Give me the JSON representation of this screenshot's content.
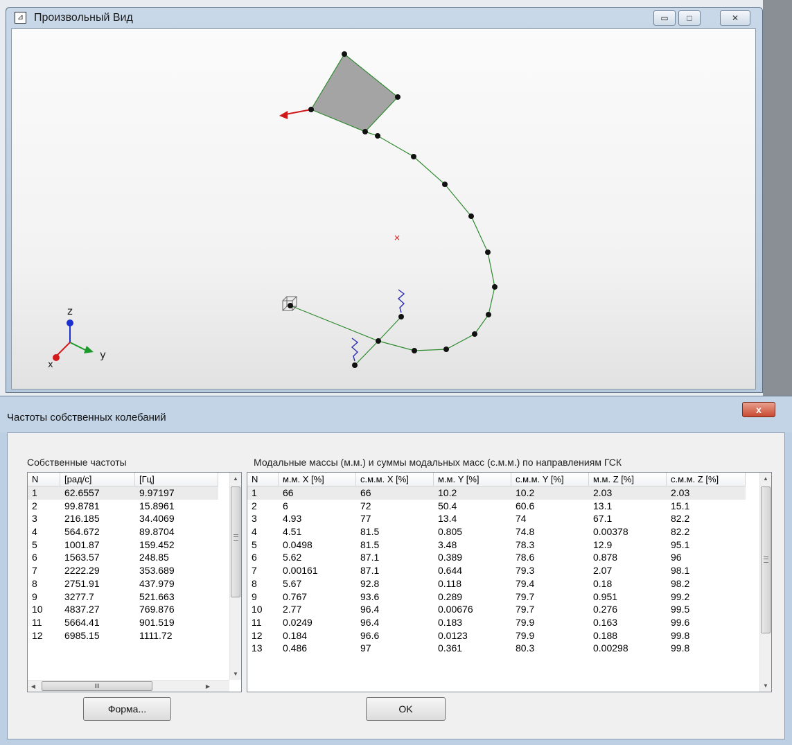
{
  "view_window": {
    "icon": "view-app-icon",
    "title": "Произвольный Вид",
    "controls": {
      "minimize": "▭",
      "maximize": "□",
      "close": "✕"
    },
    "axis_labels": {
      "z": "z",
      "y": "y",
      "x": "x"
    },
    "colors": {
      "axis_z": "#1e2fd0",
      "axis_y": "#1a9a2a",
      "axis_x": "#d41a1a",
      "pipe": "#2f8a2f",
      "node": "#111111"
    }
  },
  "dialog": {
    "title": "Частоты собственных колебаний",
    "close_label": "x",
    "freq_table": {
      "caption": "Собственные частоты",
      "columns": [
        "N",
        "[рад/с]",
        "[Гц]"
      ],
      "rows": [
        [
          "1",
          "62.6557",
          "9.97197"
        ],
        [
          "2",
          "99.8781",
          "15.8961"
        ],
        [
          "3",
          "216.185",
          "34.4069"
        ],
        [
          "4",
          "564.672",
          "89.8704"
        ],
        [
          "5",
          "1001.87",
          "159.452"
        ],
        [
          "6",
          "1563.57",
          "248.85"
        ],
        [
          "7",
          "2222.29",
          "353.689"
        ],
        [
          "8",
          "2751.91",
          "437.979"
        ],
        [
          "9",
          "3277.7",
          "521.663"
        ],
        [
          "10",
          "4837.27",
          "769.876"
        ],
        [
          "11",
          "5664.41",
          "901.519"
        ],
        [
          "12",
          "6985.15",
          "1111.72"
        ]
      ],
      "hscroll_grip": "III"
    },
    "mass_table": {
      "caption": "Модальные массы (м.м.) и суммы модальных масс (с.м.м.) по направлениям ГСК",
      "columns": [
        "N",
        "м.м. X [%]",
        "с.м.м. X [%]",
        "м.м. Y [%]",
        "с.м.м. Y [%]",
        "м.м. Z [%]",
        "с.м.м. Z [%]"
      ],
      "rows": [
        [
          "1",
          "66",
          "66",
          "10.2",
          "10.2",
          "2.03",
          "2.03"
        ],
        [
          "2",
          "6",
          "72",
          "50.4",
          "60.6",
          "13.1",
          "15.1"
        ],
        [
          "3",
          "4.93",
          "77",
          "13.4",
          "74",
          "67.1",
          "82.2"
        ],
        [
          "4",
          "4.51",
          "81.5",
          "0.805",
          "74.8",
          "0.00378",
          "82.2"
        ],
        [
          "5",
          "0.0498",
          "81.5",
          "3.48",
          "78.3",
          "12.9",
          "95.1"
        ],
        [
          "6",
          "5.62",
          "87.1",
          "0.389",
          "78.6",
          "0.878",
          "96"
        ],
        [
          "7",
          "0.00161",
          "87.1",
          "0.644",
          "79.3",
          "2.07",
          "98.1"
        ],
        [
          "8",
          "5.67",
          "92.8",
          "0.118",
          "79.4",
          "0.18",
          "98.2"
        ],
        [
          "9",
          "0.767",
          "93.6",
          "0.289",
          "79.7",
          "0.951",
          "99.2"
        ],
        [
          "10",
          "2.77",
          "96.4",
          "0.00676",
          "79.7",
          "0.276",
          "99.5"
        ],
        [
          "11",
          "0.0249",
          "96.4",
          "0.183",
          "79.9",
          "0.163",
          "99.6"
        ],
        [
          "12",
          "0.184",
          "96.6",
          "0.0123",
          "79.9",
          "0.188",
          "99.8"
        ],
        [
          "13",
          "0.486",
          "97",
          "0.361",
          "80.3",
          "0.00298",
          "99.8"
        ]
      ]
    },
    "buttons": {
      "shape": "Форма...",
      "ok": "OK"
    }
  }
}
